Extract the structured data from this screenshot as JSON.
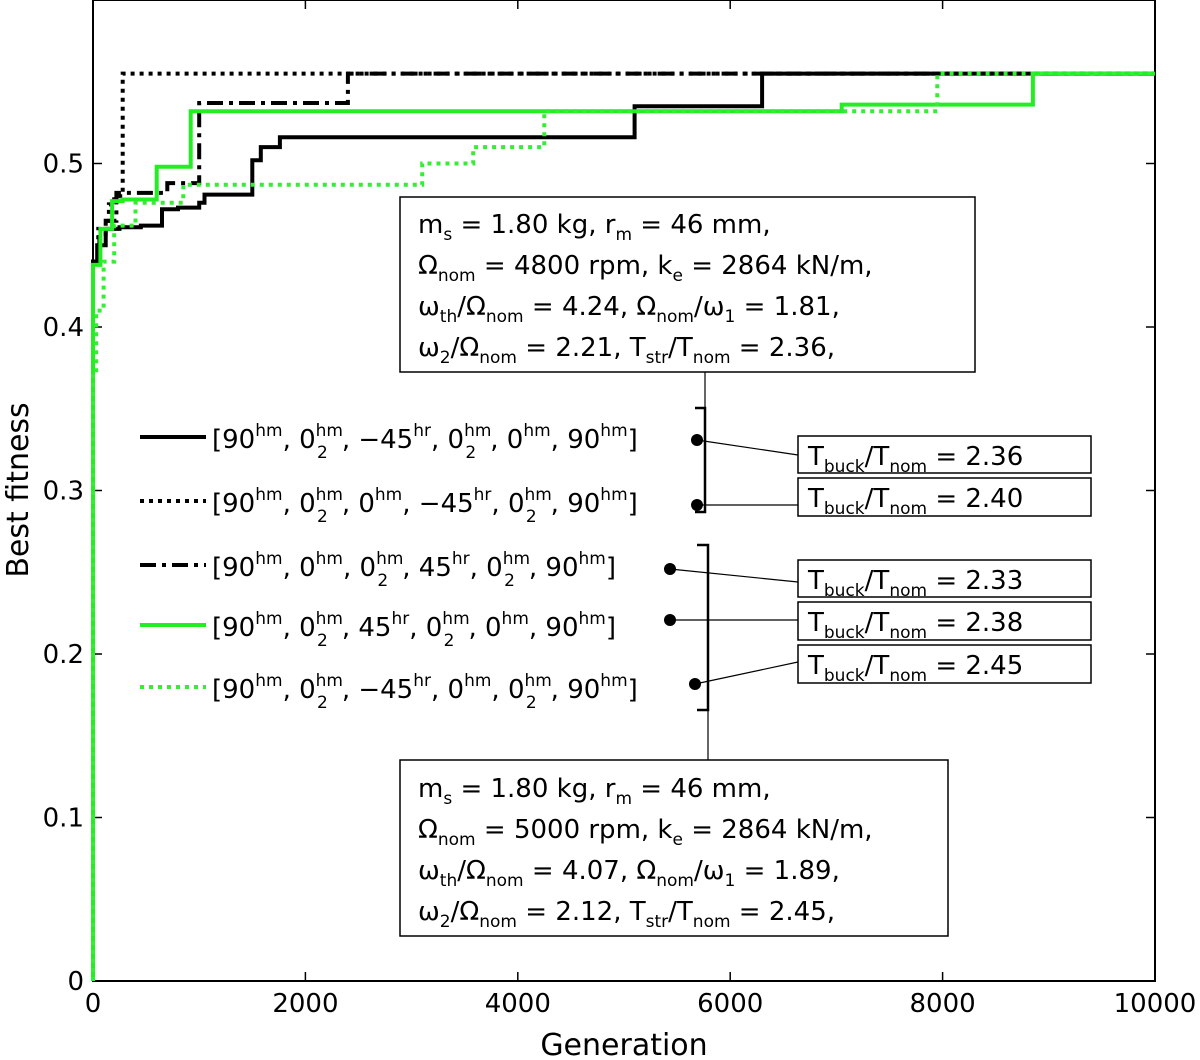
{
  "chart_data": {
    "type": "line",
    "step": true,
    "xlabel": "Generation",
    "ylabel": "Best fitness",
    "xlim": [
      0,
      10000
    ],
    "ylim": [
      0,
      0.6
    ],
    "xticks": [
      0,
      2000,
      4000,
      6000,
      8000,
      10000
    ],
    "yticks": [
      0,
      0.1,
      0.2,
      0.3,
      0.4,
      0.5
    ],
    "xtick_labels": [
      "0",
      "2000",
      "4000",
      "6000",
      "8000",
      "10000"
    ],
    "ytick_labels": [
      "0",
      "0.1",
      "0.2",
      "0.3",
      "0.4",
      "0.5"
    ],
    "grid": false,
    "legend_position": "center-left",
    "series": [
      {
        "name": "[90hm, 02hm, −45hr, 02hm, 0hm, 90hm]",
        "color": "#000000",
        "dash": "solid",
        "x": [
          0,
          40,
          120,
          250,
          450,
          650,
          800,
          1000,
          1050,
          1400,
          1500,
          1580,
          1760,
          5100,
          6300,
          10000
        ],
        "y": [
          0.44,
          0.45,
          0.46,
          0.461,
          0.462,
          0.472,
          0.473,
          0.476,
          0.481,
          0.481,
          0.502,
          0.51,
          0.516,
          0.535,
          0.555,
          0.555
        ]
      },
      {
        "name": "[90hm, 02hm, 0hm, −45hr, 02hm, 90hm]",
        "color": "#000000",
        "dash": "dotted",
        "x": [
          0,
          50,
          150,
          200,
          280,
          10000
        ],
        "y": [
          0.44,
          0.46,
          0.475,
          0.48,
          0.555,
          0.555
        ]
      },
      {
        "name": "[90hm, 0hm, 02hm, 45hr, 02hm, 90hm]",
        "color": "#000000",
        "dash": "dashdot",
        "x": [
          0,
          60,
          120,
          220,
          700,
          1000,
          2400,
          10000
        ],
        "y": [
          0.44,
          0.455,
          0.465,
          0.482,
          0.488,
          0.537,
          0.555,
          0.555
        ]
      },
      {
        "name": "[90hm, 02hm, 45hr, 02hm, 0hm, 90hm]",
        "color": "#22ee22",
        "dash": "solid",
        "x": [
          0,
          70,
          180,
          280,
          600,
          920,
          7050,
          8850,
          10000
        ],
        "y": [
          0.438,
          0.46,
          0.477,
          0.478,
          0.498,
          0.532,
          0.536,
          0.555,
          0.555
        ]
      },
      {
        "name": "[90hm, 02hm, −45hr, 0hm, 02hm, 90hm]",
        "color": "#33ee33",
        "dash": "dotted",
        "x": [
          0,
          30,
          100,
          200,
          400,
          850,
          3100,
          3580,
          4250,
          7950,
          10000
        ],
        "y": [
          0.37,
          0.41,
          0.44,
          0.462,
          0.476,
          0.487,
          0.5,
          0.51,
          0.532,
          0.555,
          0.555
        ]
      }
    ],
    "annotations": {
      "group1": {
        "line1": "ms = 1.80 kg, rm = 46 mm,",
        "line2": "Ωnom = 4800 rpm, ke = 2864 kN/m,",
        "line3": "ωth/Ωnom = 4.24, Ωnom/ω1 = 1.81,",
        "line4": "ω2/Ωnom = 2.21, Tstr/Tnom = 2.36,"
      },
      "group2": {
        "line1": "ms = 1.80 kg, rm = 46 mm,",
        "line2": "Ωnom = 5000 rpm, ke = 2864 kN/m,",
        "line3": "ωth/Ωnom = 4.07, Ωnom/ω1 = 1.89,",
        "line4": "ω2/Ωnom = 2.12, Tstr/Tnom = 2.45,"
      },
      "buckling": [
        "Tbuck/Tnom = 2.36",
        "Tbuck/Tnom = 2.40",
        "Tbuck/Tnom = 2.33",
        "Tbuck/Tnom = 2.38",
        "Tbuck/Tnom = 2.45"
      ]
    }
  }
}
